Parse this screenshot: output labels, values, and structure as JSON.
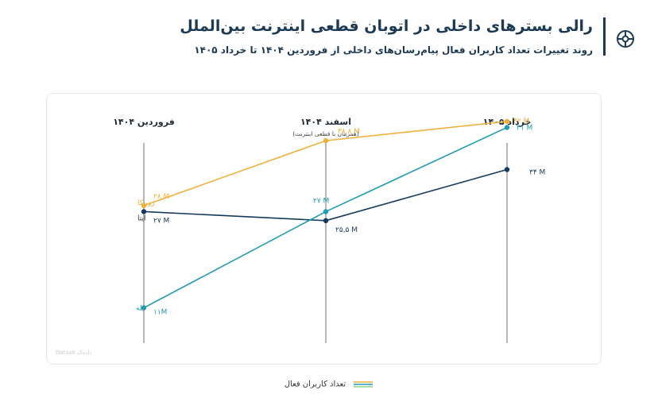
{
  "header": {
    "title": "رالی بسترهای داخلی در اتوبان قطعی اینترنت بین‌الملل",
    "subtitle": "روند تغییرات تعداد کاربران فعال پیام‌رسان‌های داخلی از فروردین ۱۴۰۴ تا خرداد ۱۴۰۵",
    "logo_icon": "wheel-brand-icon"
  },
  "watermark": "Dataak داده‌ک",
  "legend": {
    "label": "تعداد کاربران فعال"
  },
  "chart_data": {
    "type": "line",
    "x": [
      "فروردین ۱۴۰۴",
      "اسفند ۱۴۰۴",
      "خرداد ۱۴۰۵"
    ],
    "x_notes": [
      "",
      "(همزمان با قطعی اینترنت)",
      ""
    ],
    "unit": "M",
    "ylim": [
      5,
      50
    ],
    "grid": false,
    "series": [
      {
        "name": "روبیکا",
        "color": "#f0b03c",
        "values": [
          28,
          38.8,
          42
        ],
        "labels": [
          "۲۸ M",
          "۳۸,۸ M",
          "۴۲ M"
        ]
      },
      {
        "name": "ایتا",
        "color": "#143a5e",
        "values": [
          27,
          25.5,
          34
        ],
        "labels": [
          "۲۷ M",
          "۲۵,۵ M",
          "۳۴ M"
        ]
      },
      {
        "name": "بله",
        "color": "#1e9cb0",
        "values": [
          11,
          27,
          41
        ],
        "labels": [
          "۱۱M",
          "۲۷ M",
          "۴۱ M"
        ]
      }
    ]
  }
}
